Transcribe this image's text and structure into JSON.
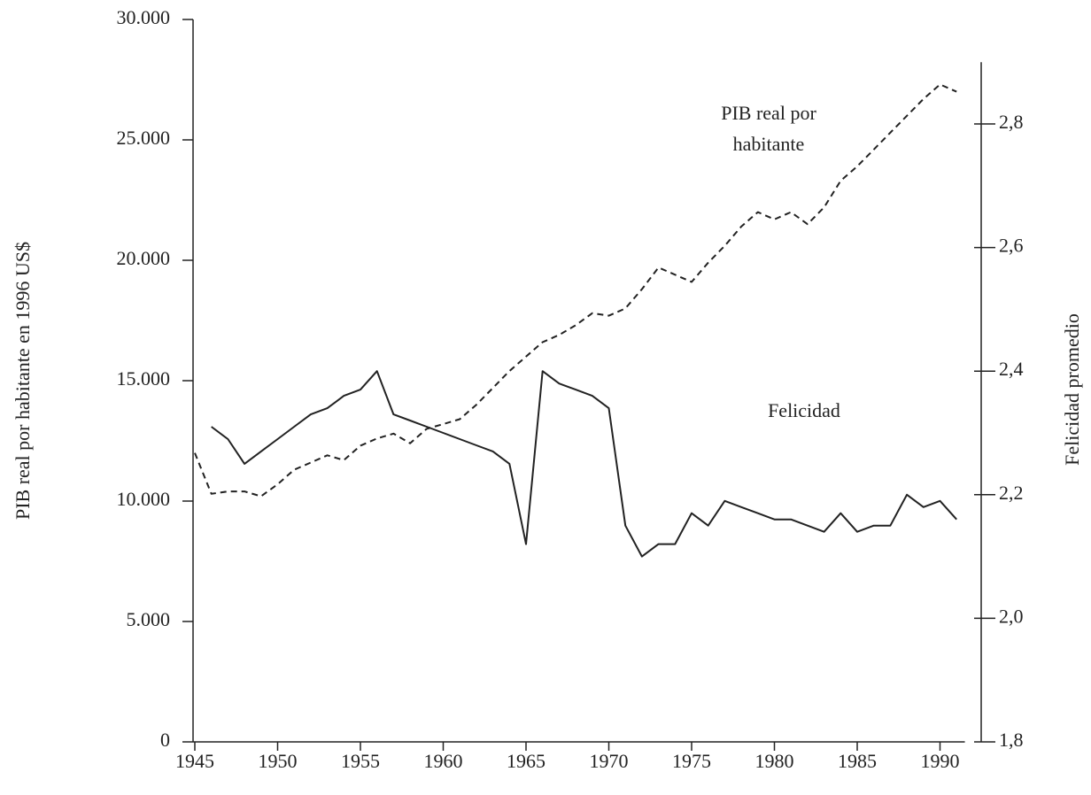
{
  "chart_data": {
    "type": "line",
    "y_label": "PIB real por habitante en 1996 US$",
    "y2_label": "Felicidad promedio",
    "annotations": [
      [
        "PIB real por",
        "habitante"
      ],
      [
        "Felicidad"
      ]
    ],
    "x": [
      1945,
      1946,
      1947,
      1948,
      1949,
      1950,
      1951,
      1952,
      1953,
      1954,
      1955,
      1956,
      1957,
      1958,
      1959,
      1960,
      1961,
      1962,
      1963,
      1964,
      1965,
      1966,
      1967,
      1968,
      1969,
      1970,
      1971,
      1972,
      1973,
      1974,
      1975,
      1976,
      1977,
      1978,
      1979,
      1980,
      1981,
      1982,
      1983,
      1984,
      1985,
      1986,
      1987,
      1988,
      1989,
      1990,
      1991
    ],
    "series": [
      {
        "color": "#222",
        "dash": true,
        "values": [
          12000,
          10300,
          10400,
          10400,
          10200,
          10700,
          11300,
          11600,
          11900,
          11700,
          12300,
          12600,
          12800,
          12400,
          13000,
          13200,
          13400,
          14000,
          14700,
          15400,
          16000,
          16600,
          16900,
          17300,
          17800,
          17700,
          18000,
          18800,
          19700,
          19400,
          19100,
          19900,
          20600,
          21400,
          22000,
          21700,
          22000,
          21500,
          22200,
          23300,
          23900,
          24600,
          25300,
          26000,
          26700,
          27300,
          27000
        ]
      },
      {
        "color": "#222",
        "dash": false,
        "axis": "y2",
        "values": [
          null,
          2.31,
          2.29,
          2.25,
          2.27,
          2.29,
          2.31,
          2.33,
          2.34,
          2.36,
          2.37,
          2.4,
          2.33,
          2.32,
          2.31,
          2.3,
          2.29,
          2.28,
          2.27,
          2.25,
          2.12,
          2.4,
          2.38,
          2.37,
          2.36,
          2.34,
          2.15,
          2.1,
          2.12,
          2.12,
          2.17,
          2.15,
          2.19,
          2.18,
          2.17,
          2.16,
          2.16,
          2.15,
          2.14,
          2.17,
          2.14,
          2.15,
          2.15,
          2.2,
          2.18,
          2.19,
          2.16
        ]
      }
    ],
    "xlim": [
      1945,
      1991.5
    ],
    "xticks": [
      1945,
      1950,
      1955,
      1960,
      1965,
      1970,
      1975,
      1980,
      1985,
      1990
    ],
    "ylim": [
      0,
      30000
    ],
    "yticks": [
      0,
      {
        "value": 5000,
        "label": "5.000"
      },
      {
        "value": 10000,
        "label": "10.000"
      },
      {
        "value": 15000,
        "label": "15.000"
      },
      {
        "value": 20000,
        "label": "20.000"
      },
      {
        "value": 25000,
        "label": "25.000"
      },
      {
        "value": 30000,
        "label": "30.000"
      }
    ],
    "y2lim": [
      1.8,
      2.9
    ],
    "y2ticks": [
      {
        "value": 1.8,
        "label": "1,8"
      },
      {
        "value": 2.0,
        "label": "2,0"
      },
      {
        "value": 2.2,
        "label": "2,2"
      },
      {
        "value": 2.4,
        "label": "2,4"
      },
      {
        "value": 2.6,
        "label": "2,6"
      },
      {
        "value": 2.8,
        "label": "2,8"
      }
    ]
  }
}
